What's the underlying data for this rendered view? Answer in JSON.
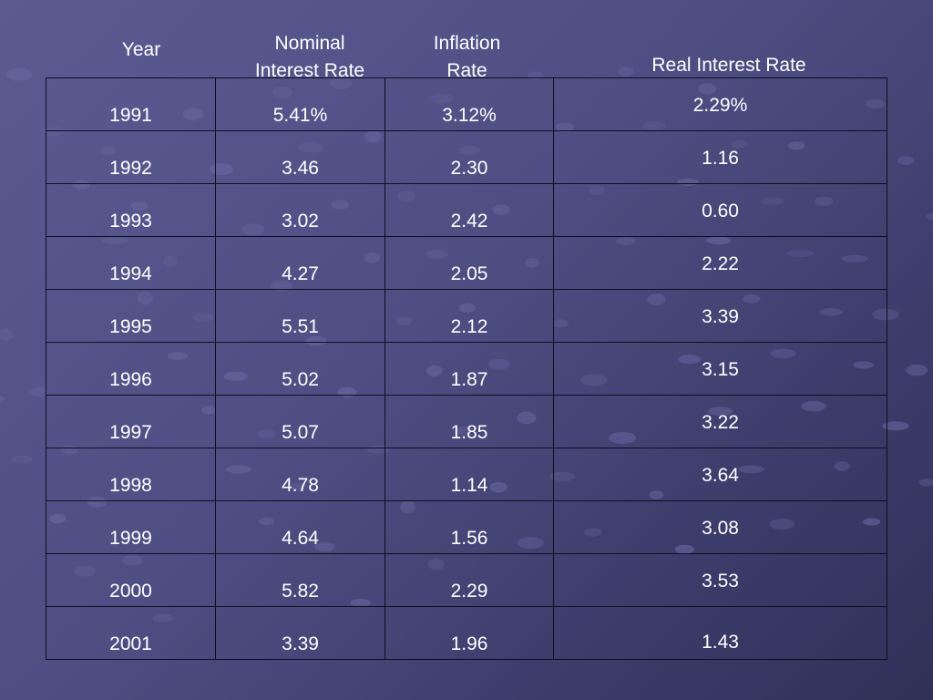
{
  "headers": {
    "year": "Year",
    "nominal": "Nominal\nInterest Rate",
    "inflation": "Inflation\nRate",
    "real": "Real Interest  Rate"
  },
  "rows": [
    {
      "year": "1991",
      "nominal": "5.41%",
      "inflation": "3.12%",
      "real": "2.29%"
    },
    {
      "year": "1992",
      "nominal": "3.46",
      "inflation": "2.30",
      "real": "1.16"
    },
    {
      "year": "1993",
      "nominal": "3.02",
      "inflation": "2.42",
      "real": "0.60"
    },
    {
      "year": "1994",
      "nominal": "4.27",
      "inflation": "2.05",
      "real": "2.22"
    },
    {
      "year": "1995",
      "nominal": "5.51",
      "inflation": "2.12",
      "real": "3.39"
    },
    {
      "year": "1996",
      "nominal": "5.02",
      "inflation": "1.87",
      "real": "3.15"
    },
    {
      "year": "1997",
      "nominal": "5.07",
      "inflation": "1.85",
      "real": "3.22"
    },
    {
      "year": "1998",
      "nominal": "4.78",
      "inflation": "1.14",
      "real": "3.64"
    },
    {
      "year": "1999",
      "nominal": "4.64",
      "inflation": "1.56",
      "real": "3.08"
    },
    {
      "year": "2000",
      "nominal": "5.82",
      "inflation": "2.29",
      "real": "3.53"
    },
    {
      "year": "2001",
      "nominal": "3.39",
      "inflation": "1.96",
      "real": "1.43"
    }
  ],
  "theme": {
    "background": "#4e4e83",
    "text": "#ffffff",
    "grid": "#0e0e20",
    "dots": "#6a6aa3"
  }
}
